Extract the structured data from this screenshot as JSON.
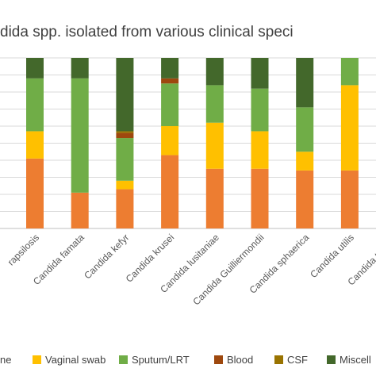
{
  "chart_data": {
    "type": "bar",
    "stacked": true,
    "normalized": true,
    "title": "Candida spp. isolated from various clinical specimens",
    "title_visible": "dida spp. isolated from various clinical speci",
    "categories": [
      "Candida parapsilosis",
      "Candida famata",
      "Candida kefyr",
      "Candida krusei",
      "Candida lusitaniae",
      "Candida Guilliermondii",
      "Candida sphaerica",
      "Candida utilis",
      "Candida thermophila"
    ],
    "categories_visible": [
      "rapsilosis",
      "Candida famata",
      "Candida kefyr",
      "Candida krusei",
      "Candida lusitaniae",
      "Candida Guilliermondii",
      "Candida sphaerica",
      "Candida utilis",
      "Candida thermo"
    ],
    "series": [
      {
        "name": "Urine",
        "color": "#ED7D31",
        "values": [
          41,
          21,
          23,
          43,
          35,
          35,
          34,
          34,
          0
        ]
      },
      {
        "name": "Vaginal swab",
        "color": "#FFC000",
        "values": [
          16,
          0,
          5,
          17,
          27,
          22,
          11,
          50,
          0
        ]
      },
      {
        "name": "Sputum/LRT",
        "color": "#70AD47",
        "values": [
          31,
          67,
          25,
          25,
          22,
          25,
          26,
          16,
          0
        ]
      },
      {
        "name": "Blood",
        "color": "#9E480E",
        "values": [
          0,
          0,
          3,
          3,
          0,
          0,
          0,
          0,
          0
        ]
      },
      {
        "name": "CSF",
        "color": "#997300",
        "values": [
          0,
          0,
          1,
          0,
          0,
          0,
          0,
          0,
          0
        ]
      },
      {
        "name": "Miscellaneous",
        "color": "#43682B",
        "values": [
          12,
          12,
          43,
          12,
          16,
          18,
          29,
          0,
          0
        ]
      }
    ],
    "legend_visible": [
      "ne",
      "Vaginal swab",
      "Sputum/LRT",
      "Blood",
      "CSF",
      "Miscell"
    ],
    "ylim": [
      0,
      100
    ],
    "grid": true,
    "legend_position": "bottom"
  }
}
